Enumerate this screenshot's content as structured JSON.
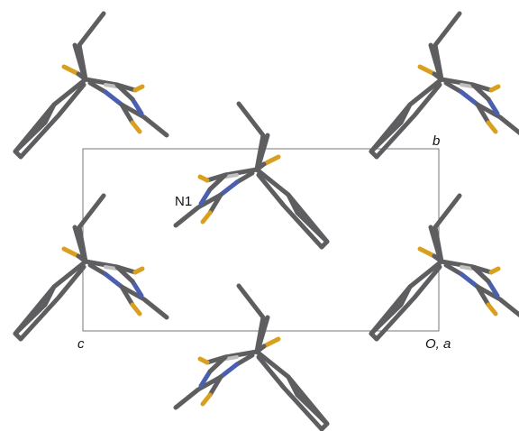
{
  "labels": {
    "b": "b",
    "n1": "N1",
    "c": "c",
    "origin": "O, a"
  }
}
